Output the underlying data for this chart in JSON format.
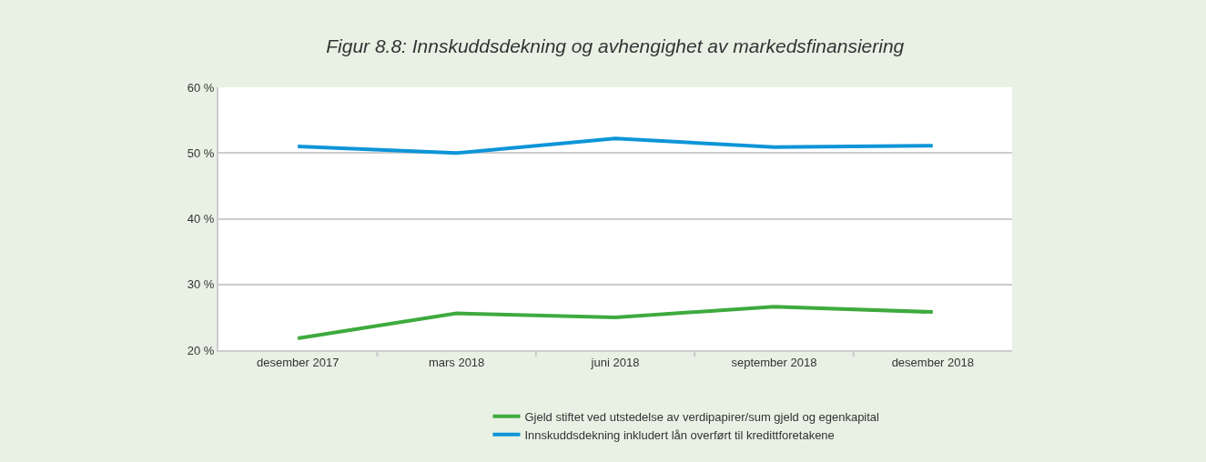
{
  "chart_data": {
    "type": "line",
    "title": "Figur 8.8: Innskuddsdekning og avhengighet av markedsfinansiering",
    "categories": [
      "desember 2017",
      "mars 2018",
      "juni 2018",
      "september 2018",
      "desember 2018"
    ],
    "series": [
      {
        "name": "Gjeld stiftet ved utstedelse av verdipapirer/sum gjeld og egenkapital",
        "color": "#3eaa3e",
        "values": [
          21.8,
          25.6,
          25.0,
          26.6,
          25.8
        ]
      },
      {
        "name": "Innskuddsdekning inkludert lån overført til kredittforetakene",
        "color": "#0d95d8",
        "values": [
          51.0,
          50.0,
          52.2,
          50.9,
          51.1
        ]
      }
    ],
    "ylim": [
      20,
      60
    ],
    "yticks": [
      {
        "value": 20,
        "label": "20 %"
      },
      {
        "value": 30,
        "label": "30 %"
      },
      {
        "value": 40,
        "label": "40 %"
      },
      {
        "value": 50,
        "label": "50 %"
      },
      {
        "value": 60,
        "label": "60 %"
      }
    ],
    "grid": "y",
    "legend": "bottom",
    "marker": "none",
    "line_style": "solid"
  }
}
